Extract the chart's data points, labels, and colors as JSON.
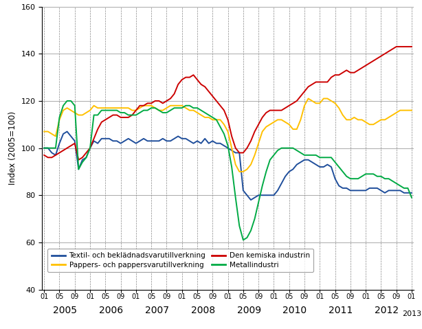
{
  "title": "",
  "ylabel": "Index (2005=100)",
  "ylim": [
    40,
    160
  ],
  "yticks": [
    40,
    60,
    80,
    100,
    120,
    140,
    160
  ],
  "background_color": "#ffffff",
  "series": {
    "Textil- och beklädnadsvarutillverkning": {
      "color": "#1f4e9b",
      "data": [
        100,
        100,
        98,
        97,
        102,
        106,
        107,
        105,
        103,
        91,
        95,
        96,
        100,
        103,
        102,
        104,
        104,
        104,
        103,
        103,
        102,
        103,
        104,
        103,
        102,
        103,
        104,
        103,
        103,
        103,
        103,
        104,
        103,
        103,
        104,
        105,
        104,
        104,
        103,
        102,
        103,
        102,
        104,
        102,
        103,
        102,
        102,
        101,
        100,
        99,
        98,
        98,
        82,
        80,
        78,
        79,
        80,
        80,
        80,
        80,
        80,
        82,
        85,
        88,
        90,
        91,
        93,
        94,
        95,
        95,
        94,
        93,
        92,
        92,
        93,
        92,
        87,
        84,
        83,
        83,
        82,
        82,
        82,
        82,
        82,
        83,
        83,
        83,
        82,
        81,
        82,
        82,
        82,
        82,
        81,
        81,
        81
      ]
    },
    "Pappers- och pappersvarutillverkning": {
      "color": "#ffc000",
      "data": [
        107,
        107,
        106,
        105,
        112,
        116,
        117,
        116,
        115,
        114,
        114,
        115,
        116,
        118,
        117,
        117,
        117,
        117,
        117,
        117,
        117,
        117,
        117,
        116,
        116,
        117,
        118,
        118,
        118,
        117,
        116,
        116,
        117,
        118,
        118,
        118,
        118,
        117,
        116,
        116,
        115,
        114,
        113,
        113,
        112,
        112,
        112,
        110,
        107,
        100,
        93,
        90,
        90,
        91,
        93,
        97,
        102,
        107,
        109,
        110,
        111,
        112,
        112,
        111,
        110,
        108,
        108,
        112,
        118,
        121,
        120,
        119,
        119,
        121,
        121,
        120,
        119,
        117,
        114,
        112,
        112,
        113,
        112,
        112,
        111,
        110,
        110,
        111,
        112,
        112,
        113,
        114,
        115,
        116,
        116,
        116,
        116
      ]
    },
    "Den kemiska industrin": {
      "color": "#cc0000",
      "data": [
        97,
        96,
        96,
        97,
        98,
        99,
        100,
        101,
        102,
        95,
        96,
        98,
        100,
        104,
        108,
        111,
        112,
        113,
        114,
        114,
        113,
        113,
        113,
        114,
        116,
        118,
        118,
        119,
        119,
        120,
        120,
        119,
        120,
        121,
        123,
        127,
        129,
        130,
        130,
        131,
        129,
        127,
        126,
        124,
        122,
        120,
        118,
        116,
        112,
        105,
        100,
        98,
        98,
        100,
        103,
        107,
        110,
        113,
        115,
        116,
        116,
        116,
        116,
        117,
        118,
        119,
        120,
        122,
        124,
        126,
        127,
        128,
        128,
        128,
        128,
        130,
        131,
        131,
        132,
        133,
        132,
        132,
        133,
        134,
        135,
        136,
        137,
        138,
        139,
        140,
        141,
        142,
        143,
        143,
        143,
        143,
        143
      ]
    },
    "Metallindustri": {
      "color": "#00aa44",
      "data": [
        100,
        100,
        100,
        100,
        113,
        118,
        120,
        120,
        118,
        91,
        94,
        96,
        100,
        114,
        114,
        116,
        116,
        116,
        116,
        116,
        115,
        115,
        114,
        114,
        114,
        115,
        116,
        116,
        117,
        117,
        116,
        115,
        115,
        116,
        117,
        117,
        117,
        118,
        118,
        117,
        117,
        116,
        115,
        114,
        113,
        112,
        109,
        106,
        101,
        92,
        79,
        67,
        61,
        62,
        65,
        70,
        77,
        84,
        90,
        95,
        97,
        99,
        100,
        100,
        100,
        100,
        99,
        98,
        97,
        97,
        97,
        97,
        96,
        96,
        96,
        96,
        94,
        92,
        90,
        88,
        87,
        87,
        87,
        88,
        89,
        89,
        89,
        88,
        88,
        87,
        87,
        86,
        85,
        84,
        83,
        83,
        79
      ]
    }
  },
  "n_points": 97,
  "legend_order": [
    "Textil- och beklädnadsvarutillverkning",
    "Pappers- och pappersvarutillverkning",
    "Den kemiska industrin",
    "Metallindustri"
  ]
}
